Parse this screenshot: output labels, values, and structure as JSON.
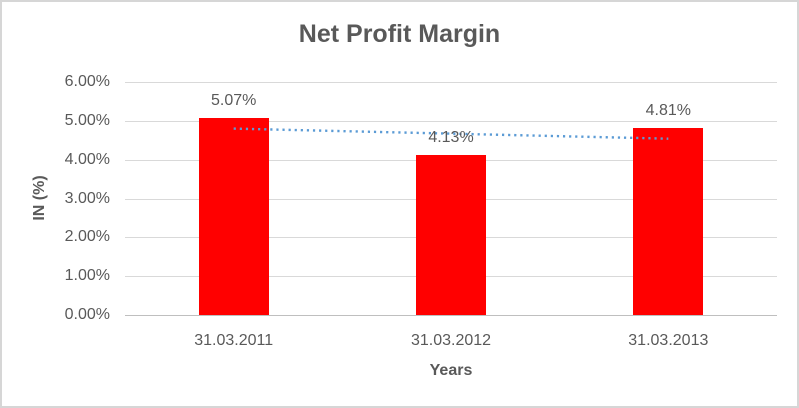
{
  "chart": {
    "title": "Net Profit Margin",
    "y_axis_title": "IN (%)",
    "x_axis_title": "Years"
  },
  "chart_data": {
    "type": "bar",
    "title": "Net Profit Margin",
    "categories": [
      "31.03.2011",
      "31.03.2012",
      "31.03.2013"
    ],
    "series": [
      {
        "name": "Net Profit Margin",
        "values": [
          5.07,
          4.13,
          4.81
        ]
      }
    ],
    "data_labels": [
      "5.07%",
      "4.13%",
      "4.81%"
    ],
    "xlabel": "Years",
    "ylabel": "IN (%)",
    "ylim": [
      0,
      6
    ],
    "y_tick_labels": [
      "0.00%",
      "1.00%",
      "2.00%",
      "3.00%",
      "4.00%",
      "5.00%",
      "6.00%"
    ],
    "grid": true,
    "legend": false,
    "trendline": {
      "type": "linear",
      "style": "dotted",
      "start_value": 4.8,
      "end_value": 4.54
    }
  },
  "colors": {
    "bar": "#FF0000",
    "trendline": "#5B9BD5",
    "gridline": "#D9D9D9",
    "axis_line": "#BFBFBF",
    "text": "#595959",
    "border": "#D6D6D6",
    "background": "#FFFFFF"
  }
}
